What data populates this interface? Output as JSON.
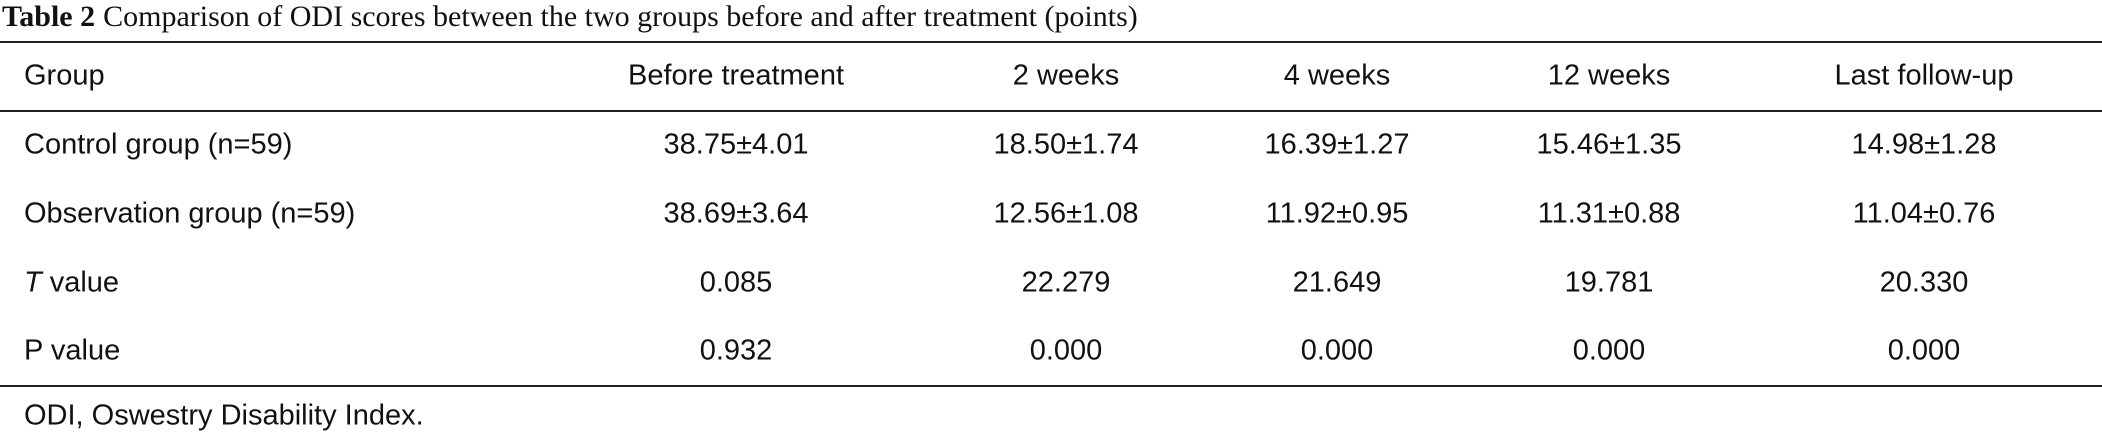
{
  "title": {
    "label": "Table 2",
    "text": "Comparison of ODI scores between the two groups before and after treatment (points)"
  },
  "table": {
    "header": [
      "Group",
      "Before treatment",
      "2 weeks",
      "4 weeks",
      "12 weeks",
      "Last follow-up"
    ],
    "rows": [
      {
        "label": "Control group (n=59)",
        "cells": [
          "38.75±4.01",
          "18.50±1.74",
          "16.39±1.27",
          "15.46±1.35",
          "14.98±1.28"
        ]
      },
      {
        "label": "Observation group (n=59)",
        "cells": [
          "38.69±3.64",
          "12.56±1.08",
          "11.92±0.95",
          "11.31±0.88",
          "11.04±0.76"
        ]
      },
      {
        "label": {
          "symbol": "T",
          "text": "value"
        },
        "cells": [
          "0.085",
          "22.279",
          "21.649",
          "19.781",
          "20.330"
        ]
      },
      {
        "label": "P value",
        "cells": [
          "0.932",
          "0.000",
          "0.000",
          "0.000",
          "0.000"
        ]
      }
    ]
  },
  "footnote": "ODI, Oswestry Disability Index."
}
